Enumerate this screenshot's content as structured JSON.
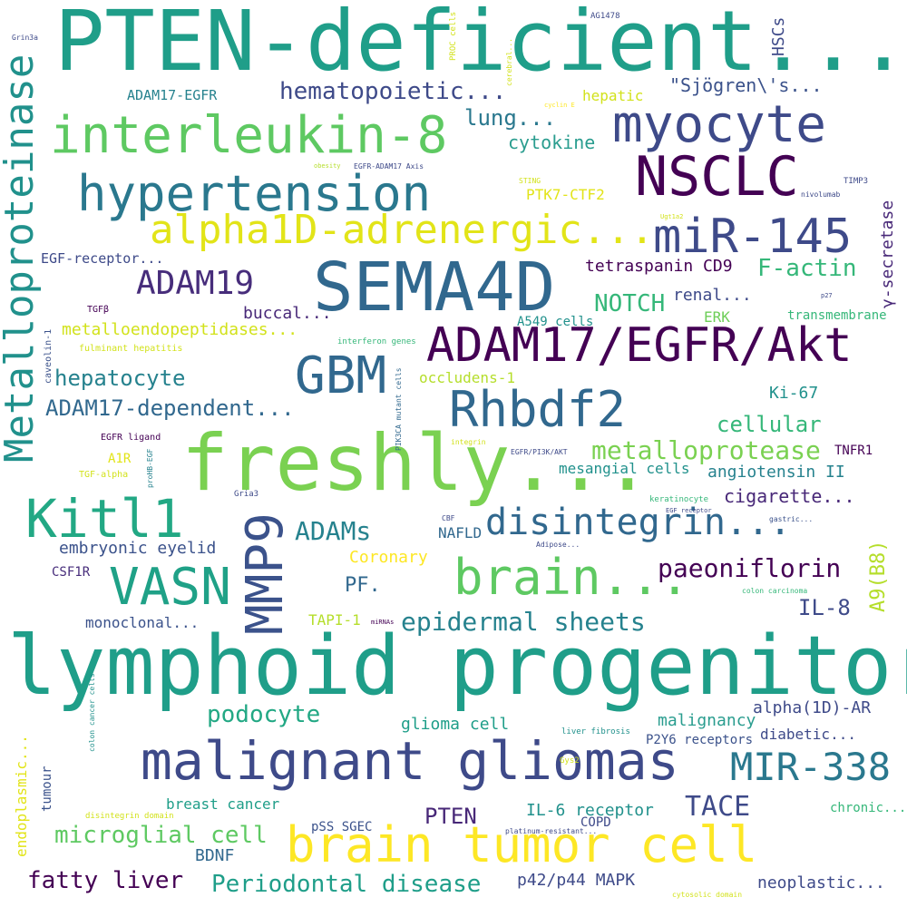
{
  "palette": {
    "dark_purple": "#440154",
    "indigo": "#3e4a89",
    "slate_blue": "#31688e",
    "teal": "#26828e",
    "sea_green": "#1f9e89",
    "green": "#35b779",
    "light_green": "#6ece58",
    "lime": "#b5de2b",
    "yellow": "#e2e418"
  },
  "words": [
    {
      "text": "PTEN-deficient...",
      "color": "#1f9e89"
    },
    {
      "text": "lymphoid progenitor",
      "color": "#1f9e89"
    },
    {
      "text": "freshly...",
      "color": "#7ad151"
    },
    {
      "text": "SEMA4D",
      "color": "#31688e"
    },
    {
      "text": "myocyte",
      "color": "#3e4a89"
    },
    {
      "text": "interleukin-8",
      "color": "#5ec962"
    },
    {
      "text": "NSCLC",
      "color": "#440154"
    },
    {
      "text": "hypertension",
      "color": "#2a788e"
    },
    {
      "text": "alpha1D-adrenergic...",
      "color": "#e2e418"
    },
    {
      "text": "miR-145",
      "color": "#3e4a89"
    },
    {
      "text": "ADAM17/EGFR/Akt",
      "color": "#440154"
    },
    {
      "text": "Metalloproteinase",
      "color": "#21918c"
    },
    {
      "text": "GBM",
      "color": "#31688e"
    },
    {
      "text": "Rhbdf2",
      "color": "#31688e"
    },
    {
      "text": "malignant gliomas",
      "color": "#3e4a89"
    },
    {
      "text": "brain tumor cell",
      "color": "#fde725"
    },
    {
      "text": "Kitl1",
      "color": "#22a884"
    },
    {
      "text": "VASN",
      "color": "#1fa187"
    },
    {
      "text": "MMP9",
      "color": "#3b528b"
    },
    {
      "text": "brain...",
      "color": "#5ec962"
    },
    {
      "text": "disintegrin...",
      "color": "#31688e"
    },
    {
      "text": "ADAM19",
      "color": "#472d7b"
    },
    {
      "text": "MIR-338",
      "color": "#2a788e"
    },
    {
      "text": "hematopoietic...",
      "color": "#3e4a89"
    },
    {
      "text": "lung...",
      "color": "#2a788e"
    },
    {
      "text": "cytokine",
      "color": "#2a9d8f"
    },
    {
      "text": "\"Sjögren\\'s...",
      "color": "#3b528b"
    },
    {
      "text": "hepatic",
      "color": "#d2e21b"
    },
    {
      "text": "ADAM17-EGFR",
      "color": "#26828e"
    },
    {
      "text": "PTK7-CTF2",
      "color": "#e2e418"
    },
    {
      "text": "EGF-receptor...",
      "color": "#3e4a89"
    },
    {
      "text": "tetraspanin CD9",
      "color": "#440154"
    },
    {
      "text": "F-actin",
      "color": "#35b779"
    },
    {
      "text": "γ-secretase",
      "color": "#482878"
    },
    {
      "text": "NOTCH",
      "color": "#35b779"
    },
    {
      "text": "buccal...",
      "color": "#482878"
    },
    {
      "text": "renal...",
      "color": "#3e4a89"
    },
    {
      "text": "metalloendopeptidases...",
      "color": "#d2e21b"
    },
    {
      "text": "A549 cells",
      "color": "#21918c"
    },
    {
      "text": "ERK",
      "color": "#6ece58"
    },
    {
      "text": "transmembrane",
      "color": "#35b779"
    },
    {
      "text": "hepatocyte",
      "color": "#26828e"
    },
    {
      "text": "occludens-1",
      "color": "#b5de2b"
    },
    {
      "text": "ADAM17-dependent...",
      "color": "#31688e"
    },
    {
      "text": "Ki-67",
      "color": "#21918c"
    },
    {
      "text": "cellular",
      "color": "#35b779"
    },
    {
      "text": "metalloprotease",
      "color": "#7ad151"
    },
    {
      "text": "mesangial cells",
      "color": "#21918c"
    },
    {
      "text": "angiotensin II",
      "color": "#26828e"
    },
    {
      "text": "TNFR1",
      "color": "#440154"
    },
    {
      "text": "cigarette...",
      "color": "#482878"
    },
    {
      "text": "ADAMs",
      "color": "#26828e"
    },
    {
      "text": "embryonic eyelid",
      "color": "#3b528b"
    },
    {
      "text": "Coronary",
      "color": "#fde725"
    },
    {
      "text": "NAFLD",
      "color": "#31688e"
    },
    {
      "text": "paeoniflorin",
      "color": "#440154"
    },
    {
      "text": "A9(B8)",
      "color": "#b5de2b"
    },
    {
      "text": "CSF1R",
      "color": "#472d7b"
    },
    {
      "text": "PF.",
      "color": "#31688e"
    },
    {
      "text": "IL-8",
      "color": "#3e4a89"
    },
    {
      "text": "monoclonal...",
      "color": "#3b528b"
    },
    {
      "text": "TAPI-1",
      "color": "#b5de2b"
    },
    {
      "text": "epidermal sheets",
      "color": "#26828e"
    },
    {
      "text": "alpha(1D)-AR",
      "color": "#3e4a89"
    },
    {
      "text": "podocyte",
      "color": "#22a884"
    },
    {
      "text": "malignancy",
      "color": "#2a9d8f"
    },
    {
      "text": "diabetic...",
      "color": "#3e4a89"
    },
    {
      "text": "glioma cell",
      "color": "#1f9e89"
    },
    {
      "text": "P2Y6 receptors",
      "color": "#3b528b"
    },
    {
      "text": "endoplasmic...",
      "color": "#e2e418"
    },
    {
      "text": "tumour",
      "color": "#3b528b"
    },
    {
      "text": "breast cancer",
      "color": "#1f9e89"
    },
    {
      "text": "TACE",
      "color": "#3e4a89"
    },
    {
      "text": "IL-6 receptor",
      "color": "#21918c"
    },
    {
      "text": "chronic...",
      "color": "#35b779"
    },
    {
      "text": "PTEN",
      "color": "#482878"
    },
    {
      "text": "COPD",
      "color": "#3e4a89"
    },
    {
      "text": "microglial cell",
      "color": "#5ec962"
    },
    {
      "text": "pSS SGEC",
      "color": "#3b528b"
    },
    {
      "text": "BDNF",
      "color": "#31688e"
    },
    {
      "text": "fatty liver",
      "color": "#440154"
    },
    {
      "text": "Periodontal disease",
      "color": "#1f9e89"
    },
    {
      "text": "p42/p44 MAPK",
      "color": "#3e4a89"
    },
    {
      "text": "neoplastic...",
      "color": "#3e4a89"
    },
    {
      "text": "HSCs",
      "color": "#3e4a89"
    },
    {
      "text": "AG1478",
      "color": "#3e4a89"
    },
    {
      "text": "Grin3a",
      "color": "#3e4a89"
    },
    {
      "text": "PROC cells",
      "color": "#d2e21b"
    },
    {
      "text": "cerebral...",
      "color": "#d2e21b"
    },
    {
      "text": "cyclin E",
      "color": "#fde725"
    },
    {
      "text": "obesity",
      "color": "#b5de2b"
    },
    {
      "text": "EGFR-ADAM17 Axis",
      "color": "#3e4a89"
    },
    {
      "text": "STING",
      "color": "#d2e21b"
    },
    {
      "text": "TIMP3",
      "color": "#3e4a89"
    },
    {
      "text": "nivolumab",
      "color": "#3e4a89"
    },
    {
      "text": "Ugt1a2",
      "color": "#d2e21b"
    },
    {
      "text": "p27",
      "color": "#3e4a89"
    },
    {
      "text": "TGFβ",
      "color": "#440154"
    },
    {
      "text": "caveolin-1",
      "color": "#3b528b"
    },
    {
      "text": "fulminant hepatitis",
      "color": "#d2e21b"
    },
    {
      "text": "interferon genes",
      "color": "#35b779"
    },
    {
      "text": "PIK3CA mutant cells",
      "color": "#31688e"
    },
    {
      "text": "EGFR ligand",
      "color": "#440154"
    },
    {
      "text": "A1R",
      "color": "#e2e418"
    },
    {
      "text": "TGF-alpha",
      "color": "#d2e21b"
    },
    {
      "text": "proHB-EGF",
      "color": "#26828e"
    },
    {
      "text": "integrin",
      "color": "#d2e21b"
    },
    {
      "text": "EGFR/PI3K/AKT",
      "color": "#3e4a89"
    },
    {
      "text": "Gria3",
      "color": "#3e4a89"
    },
    {
      "text": "keratinocyte",
      "color": "#35b779"
    },
    {
      "text": "gastric...",
      "color": "#3b528b"
    },
    {
      "text": "EGF receptor",
      "color": "#3e4a89"
    },
    {
      "text": "CBF",
      "color": "#3e4a89"
    },
    {
      "text": "Adipose...",
      "color": "#3e4a89"
    },
    {
      "text": "colon carcinoma",
      "color": "#35b779"
    },
    {
      "text": "miRNAs",
      "color": "#440154"
    },
    {
      "text": "colon cancer cells",
      "color": "#21918c"
    },
    {
      "text": "liver fibrosis",
      "color": "#21918c"
    },
    {
      "text": "Gys2",
      "color": "#d2e21b"
    },
    {
      "text": "disintegrin domain",
      "color": "#d2e21b"
    },
    {
      "text": "platinum-resistant...",
      "color": "#3e4a89"
    },
    {
      "text": "cytosolic domain",
      "color": "#d2e21b"
    }
  ]
}
